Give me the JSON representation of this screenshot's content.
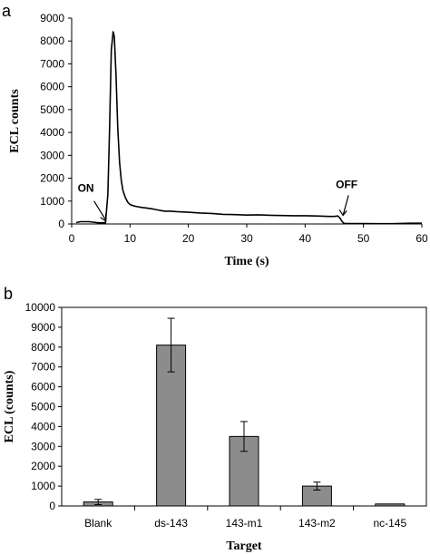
{
  "chart_data": [
    {
      "type": "line",
      "panel_label": "a",
      "xlabel": "Time (s)",
      "ylabel": "ECL counts",
      "xlim": [
        0,
        60
      ],
      "ylim": [
        0,
        9000
      ],
      "x_ticks": [
        0,
        10,
        20,
        30,
        40,
        50,
        60
      ],
      "y_ticks": [
        0,
        1000,
        2000,
        3000,
        4000,
        5000,
        6000,
        7000,
        8000,
        9000
      ],
      "grid": false,
      "annotations": [
        {
          "text": "ON",
          "x": 6,
          "y": 50
        },
        {
          "text": "OFF",
          "x": 46.5,
          "y": 300
        }
      ],
      "series": [
        {
          "x": [
            0.8,
            1.5,
            3,
            4.5,
            5.8,
            6.2,
            6.5,
            6.8,
            7.1,
            7.3,
            7.6,
            7.9,
            8.2,
            8.5,
            8.8,
            9.2,
            9.6,
            10,
            10.5,
            11,
            12,
            13,
            14,
            15,
            16,
            17,
            18,
            20,
            22,
            24,
            26,
            28,
            30,
            32,
            34,
            36,
            38,
            40,
            42,
            44,
            45,
            45.6,
            46,
            46.3,
            46.6,
            47,
            48,
            50,
            52,
            55,
            58,
            60
          ],
          "y": [
            60,
            100,
            100,
            50,
            50,
            1300,
            4200,
            7600,
            8400,
            8200,
            6500,
            4200,
            2700,
            1900,
            1450,
            1150,
            950,
            850,
            800,
            770,
            720,
            690,
            650,
            600,
            560,
            560,
            540,
            510,
            480,
            460,
            420,
            410,
            390,
            400,
            380,
            370,
            360,
            360,
            350,
            330,
            330,
            350,
            250,
            120,
            30,
            20,
            20,
            20,
            10,
            10,
            30,
            30
          ]
        }
      ]
    },
    {
      "type": "bar",
      "panel_label": "b",
      "xlabel": "Target",
      "ylabel": "ECL (counts)",
      "ylim": [
        0,
        10000
      ],
      "y_ticks": [
        0,
        1000,
        2000,
        3000,
        4000,
        5000,
        6000,
        7000,
        8000,
        9000,
        10000
      ],
      "grid": false,
      "categories": [
        "Blank",
        "ds-143",
        "143-m1",
        "143-m2",
        "nc-145"
      ],
      "values": [
        200,
        8100,
        3500,
        1000,
        100
      ],
      "errors": [
        130,
        1350,
        750,
        200,
        0
      ]
    }
  ]
}
